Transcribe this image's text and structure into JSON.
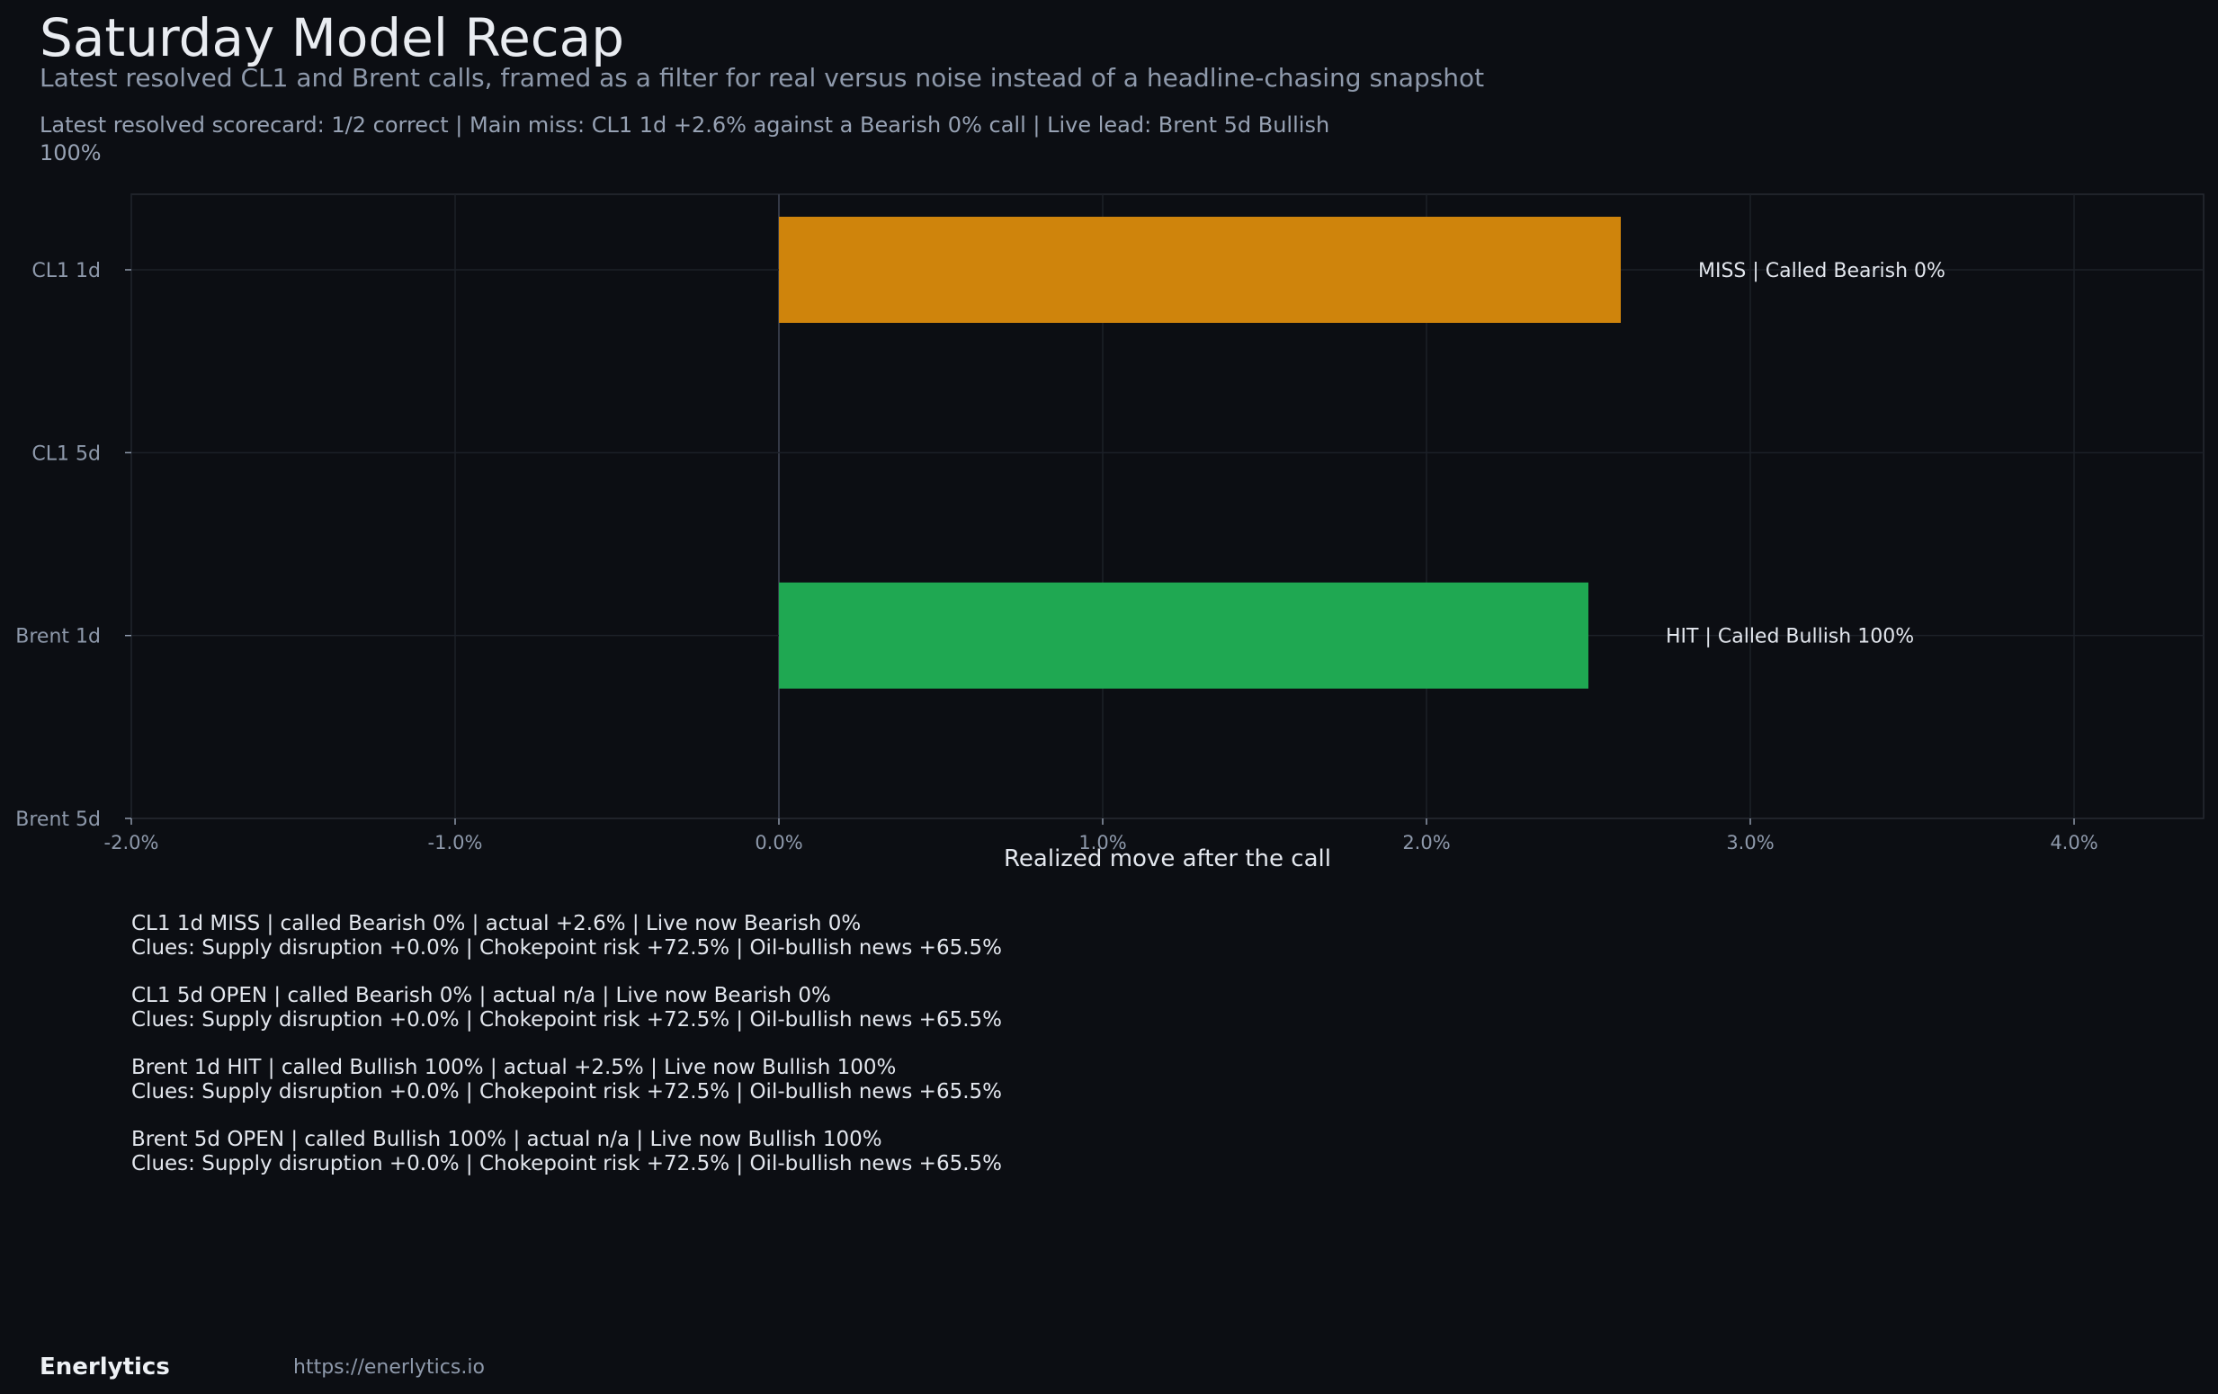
{
  "header": {
    "title": "Saturday Model Recap",
    "subtitle": "Latest resolved CL1 and Brent calls, framed as a filter for real versus noise instead of a headline-chasing snapshot",
    "scorecard": "Latest resolved scorecard: 1/2 correct  |  Main miss: CL1 1d +2.6% against a Bearish 0% call  |  Live lead: Brent 5d Bullish 100%"
  },
  "chart_data": {
    "type": "bar",
    "orientation": "horizontal",
    "categories": [
      "CL1 1d",
      "CL1 5d",
      "Brent 1d",
      "Brent 5d"
    ],
    "values": [
      2.6,
      null,
      2.5,
      null
    ],
    "bar_labels": [
      "MISS | Called Bearish 0%",
      "",
      "HIT | Called Bullish 100%",
      ""
    ],
    "bar_colors": [
      "#cf840c",
      null,
      "#1fa852",
      null
    ],
    "xlabel": "Realized move after the call",
    "ylabel": "",
    "xlim": [
      -2.0,
      4.4
    ],
    "xticks": [
      -2.0,
      -1.0,
      0.0,
      1.0,
      2.0,
      3.0,
      4.0
    ],
    "xtick_labels": [
      "-2.0%",
      "-1.0%",
      "0.0%",
      "1.0%",
      "2.0%",
      "3.0%",
      "4.0%"
    ],
    "grid": true
  },
  "notes": [
    {
      "line1": "CL1 1d MISS | called Bearish 0% | actual +2.6% | Live now Bearish 0%",
      "line2": "Clues: Supply disruption +0.0% | Chokepoint risk +72.5% | Oil-bullish news +65.5%"
    },
    {
      "line1": "CL1 5d OPEN | called Bearish 0% | actual n/a | Live now Bearish 0%",
      "line2": "Clues: Supply disruption +0.0% | Chokepoint risk +72.5% | Oil-bullish news +65.5%"
    },
    {
      "line1": "Brent 1d HIT | called Bullish 100% | actual +2.5% | Live now Bullish 100%",
      "line2": "Clues: Supply disruption +0.0% | Chokepoint risk +72.5% | Oil-bullish news +65.5%"
    },
    {
      "line1": "Brent 5d OPEN | called Bullish 100% | actual n/a | Live now Bullish 100%",
      "line2": "Clues: Supply disruption +0.0% | Chokepoint risk +72.5% | Oil-bullish news +65.5%"
    }
  ],
  "footer": {
    "brand": "Enerlytics",
    "url": "https://enerlytics.io"
  },
  "colors": {
    "background": "#0c0e13",
    "miss": "#cf840c",
    "hit": "#1fa852",
    "text_muted": "#8e99ab"
  }
}
